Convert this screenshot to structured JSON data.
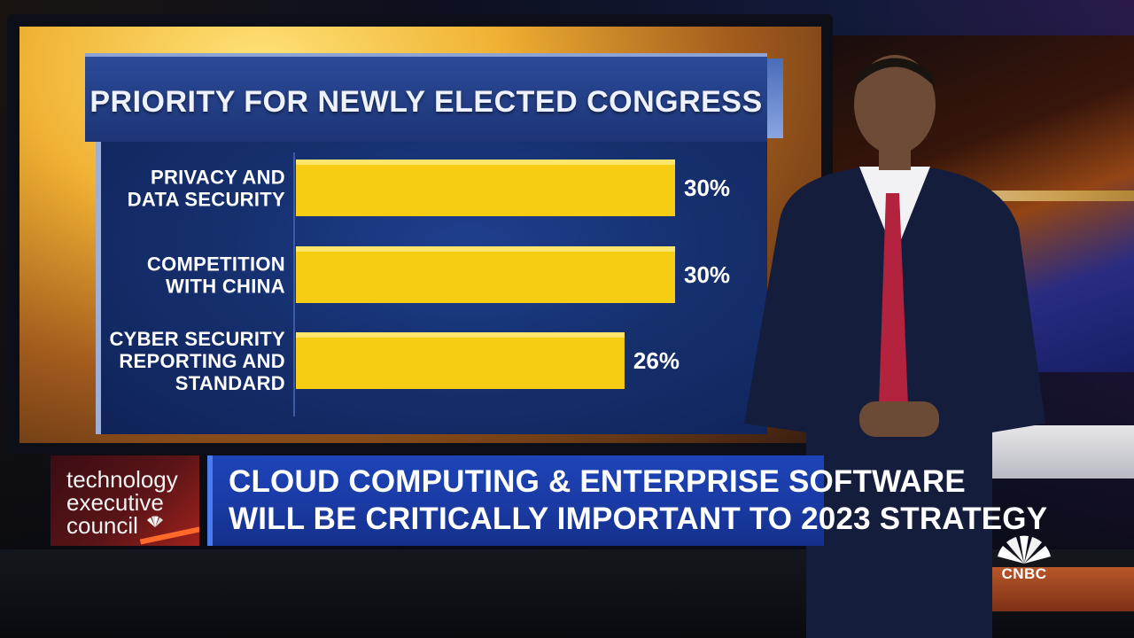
{
  "chart_data": {
    "type": "bar",
    "orientation": "horizontal",
    "title": "PRIORITY FOR NEWLY ELECTED CONGRESS",
    "categories": [
      [
        "PRIVACY AND",
        "DATA SECURITY"
      ],
      [
        "COMPETITION",
        "WITH CHINA"
      ],
      [
        "CYBER SECURITY",
        "REPORTING AND",
        "STANDARD"
      ]
    ],
    "values": [
      30,
      30,
      26
    ],
    "value_labels": [
      "30%",
      "30%",
      "26%"
    ],
    "unit": "%",
    "xlim": [
      0,
      30
    ],
    "grid": false,
    "legend": "none",
    "colors": {
      "bar": "#f6cd12",
      "panel": "#16306f",
      "text": "#ffffff"
    }
  },
  "lower_third": {
    "brand_lines": [
      "technology",
      "executive",
      "council"
    ],
    "headline_lines": [
      "CLOUD COMPUTING & ENTERPRISE SOFTWARE",
      "WILL BE CRITICALLY IMPORTANT TO 2023 STRATEGY"
    ]
  },
  "network_logo": {
    "text": "CNBC",
    "icon": "peacock-icon"
  }
}
